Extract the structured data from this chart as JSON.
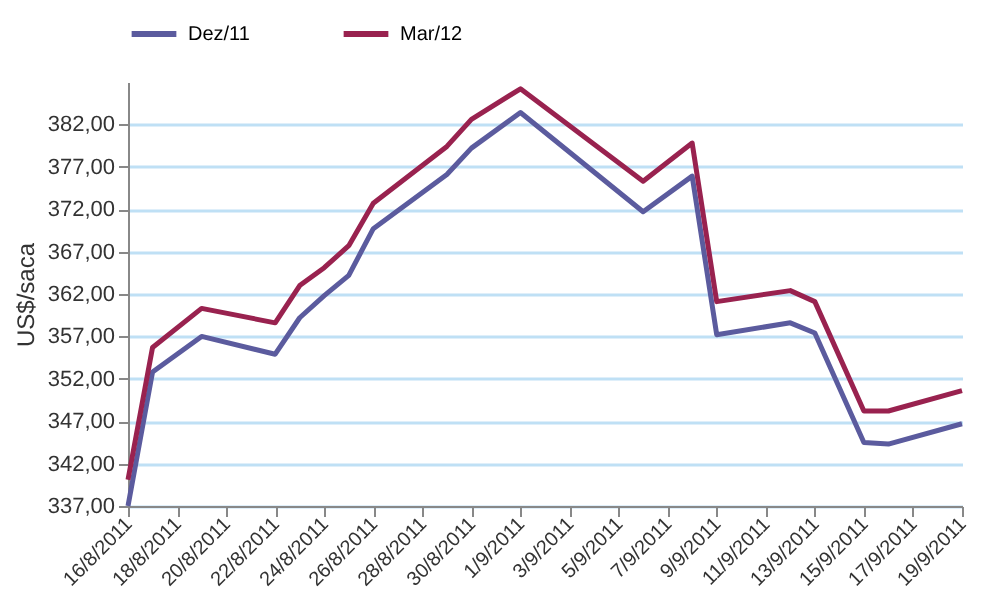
{
  "chart_data": {
    "type": "line",
    "ylabel": "US$/saca",
    "x": [
      "2011-08-16",
      "2011-08-17",
      "2011-08-19",
      "2011-08-22",
      "2011-08-23",
      "2011-08-24",
      "2011-08-25",
      "2011-08-26",
      "2011-08-29",
      "2011-08-30",
      "2011-09-01",
      "2011-09-06",
      "2011-09-08",
      "2011-09-09",
      "2011-09-12",
      "2011-09-13",
      "2011-09-15",
      "2011-09-16",
      "2011-09-19"
    ],
    "series": [
      {
        "name": "Dez/11",
        "color": "#5b5b9e",
        "values": [
          337.0,
          352.8,
          357.0,
          354.9,
          359.2,
          361.8,
          364.2,
          369.7,
          376.1,
          379.2,
          383.4,
          371.7,
          375.9,
          357.2,
          358.6,
          357.4,
          344.5,
          344.3,
          346.7
        ]
      },
      {
        "name": "Mar/12",
        "color": "#99224f",
        "values": [
          340.1,
          355.7,
          360.3,
          358.6,
          363.0,
          365.1,
          367.7,
          372.7,
          379.4,
          382.6,
          386.2,
          375.3,
          379.8,
          361.1,
          362.4,
          361.1,
          348.2,
          348.2,
          350.6
        ]
      }
    ],
    "xlim": [
      "2011-08-16",
      "2011-09-19"
    ],
    "xticks": [
      {
        "value": "2011-08-16",
        "label": "16/8/2011"
      },
      {
        "value": "2011-08-18",
        "label": "18/8/2011"
      },
      {
        "value": "2011-08-20",
        "label": "20/8/2011"
      },
      {
        "value": "2011-08-22",
        "label": "22/8/2011"
      },
      {
        "value": "2011-08-24",
        "label": "24/8/2011"
      },
      {
        "value": "2011-08-26",
        "label": "26/8/2011"
      },
      {
        "value": "2011-08-28",
        "label": "28/8/2011"
      },
      {
        "value": "2011-08-30",
        "label": "30/8/2011"
      },
      {
        "value": "2011-09-01",
        "label": "1/9/2011"
      },
      {
        "value": "2011-09-03",
        "label": "3/9/2011"
      },
      {
        "value": "2011-09-05",
        "label": "5/9/2011"
      },
      {
        "value": "2011-09-07",
        "label": "7/9/2011"
      },
      {
        "value": "2011-09-09",
        "label": "9/9/2011"
      },
      {
        "value": "2011-09-11",
        "label": "11/9/2011"
      },
      {
        "value": "2011-09-13",
        "label": "13/9/2011"
      },
      {
        "value": "2011-09-15",
        "label": "15/9/2011"
      },
      {
        "value": "2011-09-17",
        "label": "17/9/2011"
      },
      {
        "value": "2011-09-19",
        "label": "19/9/2011"
      }
    ],
    "ylim": [
      337,
      387
    ],
    "yticks": [
      {
        "value": 337,
        "label": "337,00"
      },
      {
        "value": 342,
        "label": "342,00"
      },
      {
        "value": 347,
        "label": "347,00"
      },
      {
        "value": 352,
        "label": "352,00"
      },
      {
        "value": 357,
        "label": "357,00"
      },
      {
        "value": 362,
        "label": "362,00"
      },
      {
        "value": 367,
        "label": "367,00"
      },
      {
        "value": 372,
        "label": "372,00"
      },
      {
        "value": 377,
        "label": "377,00"
      },
      {
        "value": 382,
        "label": "382,00"
      }
    ],
    "grid": "y",
    "legend": "top",
    "marker": "none",
    "line_style": "solid"
  }
}
